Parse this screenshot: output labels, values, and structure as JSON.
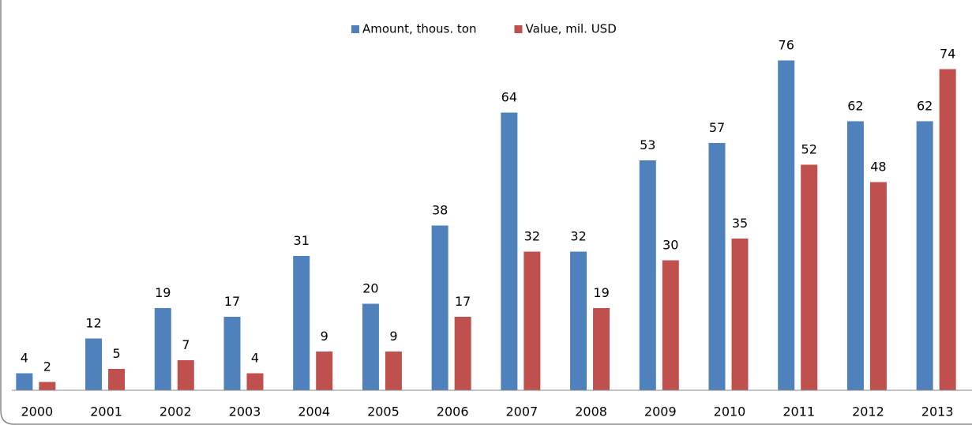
{
  "chart_data": {
    "type": "bar",
    "categories": [
      "2000",
      "2001",
      "2002",
      "2003",
      "2004",
      "2005",
      "2006",
      "2007",
      "2008",
      "2009",
      "2010",
      "2011",
      "2012",
      "2013"
    ],
    "series": [
      {
        "name": "Amount, thous. ton",
        "color": "#4f81bd",
        "values": [
          4,
          12,
          19,
          17,
          31,
          20,
          38,
          64,
          32,
          53,
          57,
          76,
          62,
          62
        ]
      },
      {
        "name": "Value, mil. USD",
        "color": "#c0504d",
        "values": [
          2,
          5,
          7,
          4,
          9,
          9,
          17,
          32,
          19,
          30,
          35,
          52,
          48,
          74
        ]
      }
    ],
    "ylim": [
      0,
      80
    ],
    "legend": "top",
    "data_labels": true
  }
}
